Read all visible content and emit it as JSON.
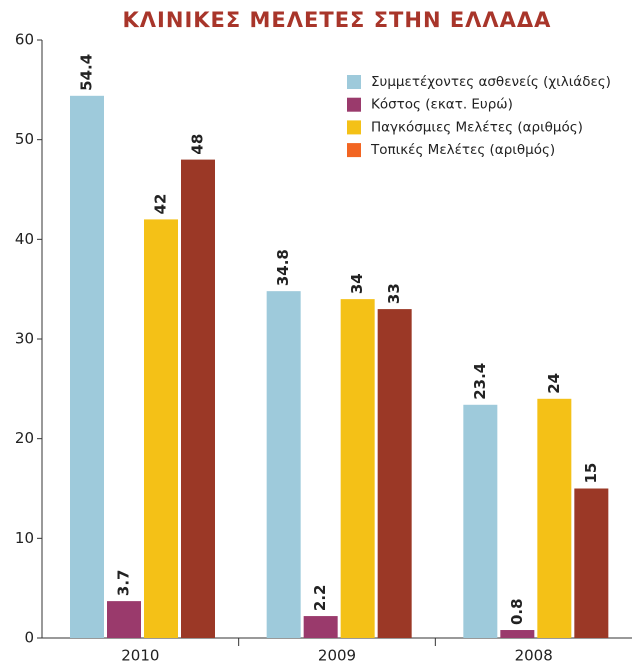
{
  "chart_data": {
    "type": "bar",
    "title": "ΚΛΙΝΙΚΕΣ ΜΕΛΕΤΕΣ ΣΤΗΝ ΕΛΛΑΔΑ",
    "categories": [
      "2010",
      "2009",
      "2008"
    ],
    "series": [
      {
        "name": "Συμμετέχοντες ασθενείς (χιλιάδες)",
        "color": "#9ecadb",
        "values": [
          54.4,
          34.8,
          23.4
        ]
      },
      {
        "name": "Κόστος (εκατ. Ευρώ)",
        "color": "#9a3a6c",
        "values": [
          3.7,
          2.2,
          0.8
        ]
      },
      {
        "name": "Παγκόσμιες Μελέτες (αριθμός)",
        "color": "#f4c117",
        "values": [
          42,
          34,
          24
        ]
      },
      {
        "name": "Τοπικές Μελέτες (αριθμός)",
        "color": "#9b3826",
        "legend_color": "#f26522",
        "values": [
          48,
          33,
          15
        ]
      }
    ],
    "ylim": [
      0,
      60
    ],
    "yticks": [
      0,
      10,
      20,
      30,
      40,
      50,
      60
    ],
    "legend": "top-right"
  }
}
